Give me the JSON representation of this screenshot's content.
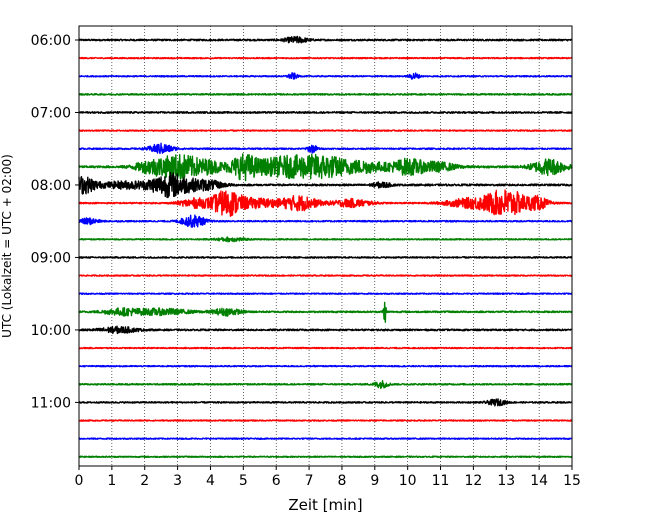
{
  "chart_data": {
    "type": "line",
    "title": "",
    "xlabel": "Zeit  [min]",
    "ylabel": "UTC (Lokalzeit = UTC + 02:00)",
    "xlim": [
      0,
      15
    ],
    "x_ticks": [
      0,
      1,
      2,
      3,
      4,
      5,
      6,
      7,
      8,
      9,
      10,
      11,
      12,
      13,
      14,
      15
    ],
    "x_tick_labels": [
      "0",
      "1",
      "2",
      "3",
      "4",
      "5",
      "6",
      "7",
      "8",
      "9",
      "10",
      "11",
      "12",
      "13",
      "14",
      "15"
    ],
    "y_tick_labels": [
      "06:00",
      "07:00",
      "08:00",
      "09:00",
      "10:00",
      "11:00"
    ],
    "grid": "vertical dotted",
    "legend": "none",
    "line_colors": [
      "#000000",
      "#ff0000",
      "#0000ff",
      "#008000"
    ],
    "series": [
      {
        "values": [],
        "color": "#000000",
        "start_time": "06:00",
        "amplitude": 0.08,
        "bursts": [
          {
            "t": 6.6,
            "w": 0.25,
            "a": 0.3
          }
        ]
      },
      {
        "values": [],
        "color": "#ff0000",
        "start_time": "06:15",
        "amplitude": 0.06,
        "bursts": []
      },
      {
        "values": [],
        "color": "#0000ff",
        "start_time": "06:30",
        "amplitude": 0.06,
        "bursts": [
          {
            "t": 6.5,
            "w": 0.1,
            "a": 0.3
          },
          {
            "t": 10.2,
            "w": 0.1,
            "a": 0.35
          }
        ]
      },
      {
        "values": [],
        "color": "#008000",
        "start_time": "06:45",
        "amplitude": 0.07,
        "bursts": []
      },
      {
        "values": [],
        "color": "#000000",
        "start_time": "07:00",
        "amplitude": 0.08,
        "bursts": []
      },
      {
        "values": [],
        "color": "#ff0000",
        "start_time": "07:15",
        "amplitude": 0.06,
        "bursts": []
      },
      {
        "values": [],
        "color": "#0000ff",
        "start_time": "07:30",
        "amplitude": 0.07,
        "bursts": [
          {
            "t": 2.5,
            "w": 0.25,
            "a": 0.5
          },
          {
            "t": 7.1,
            "w": 0.1,
            "a": 0.4
          }
        ]
      },
      {
        "values": [],
        "color": "#008000",
        "start_time": "07:45",
        "amplitude": 0.1,
        "bursts": [
          {
            "t": 2.2,
            "w": 0.35,
            "a": 0.6
          },
          {
            "t": 3.1,
            "w": 0.45,
            "a": 1.2
          },
          {
            "t": 4.0,
            "w": 0.3,
            "a": 0.5
          },
          {
            "t": 5.0,
            "w": 0.3,
            "a": 1.1
          },
          {
            "t": 6.3,
            "w": 0.7,
            "a": 1.0
          },
          {
            "t": 7.5,
            "w": 0.5,
            "a": 0.9
          },
          {
            "t": 8.7,
            "w": 0.5,
            "a": 0.55
          },
          {
            "t": 10.0,
            "w": 0.35,
            "a": 0.75
          },
          {
            "t": 10.9,
            "w": 0.4,
            "a": 0.45
          },
          {
            "t": 14.3,
            "w": 0.35,
            "a": 0.8
          }
        ]
      },
      {
        "values": [],
        "color": "#000000",
        "start_time": "08:00",
        "amplitude": 0.09,
        "bursts": [
          {
            "t": 0.1,
            "w": 0.3,
            "a": 0.85
          },
          {
            "t": 1.4,
            "w": 0.5,
            "a": 0.35
          },
          {
            "t": 2.8,
            "w": 0.45,
            "a": 1.2
          },
          {
            "t": 3.9,
            "w": 0.35,
            "a": 0.45
          },
          {
            "t": 9.2,
            "w": 0.2,
            "a": 0.25
          }
        ]
      },
      {
        "values": [],
        "color": "#ff0000",
        "start_time": "08:15",
        "amplitude": 0.07,
        "bursts": [
          {
            "t": 3.5,
            "w": 0.3,
            "a": 0.45
          },
          {
            "t": 4.5,
            "w": 0.35,
            "a": 1.3
          },
          {
            "t": 5.5,
            "w": 0.4,
            "a": 0.45
          },
          {
            "t": 6.7,
            "w": 0.4,
            "a": 0.75
          },
          {
            "t": 8.3,
            "w": 0.4,
            "a": 0.4
          },
          {
            "t": 11.8,
            "w": 0.5,
            "a": 0.4
          },
          {
            "t": 13.0,
            "w": 0.5,
            "a": 1.35
          },
          {
            "t": 14.0,
            "w": 0.2,
            "a": 0.5
          }
        ]
      },
      {
        "values": [],
        "color": "#0000ff",
        "start_time": "08:30",
        "amplitude": 0.07,
        "bursts": [
          {
            "t": 0.3,
            "w": 0.2,
            "a": 0.3
          },
          {
            "t": 3.6,
            "w": 0.2,
            "a": 0.45
          },
          {
            "t": 3.3,
            "w": 0.2,
            "a": 0.3
          }
        ]
      },
      {
        "values": [],
        "color": "#008000",
        "start_time": "08:45",
        "amplitude": 0.06,
        "bursts": [
          {
            "t": 4.6,
            "w": 0.3,
            "a": 0.2
          }
        ]
      },
      {
        "values": [],
        "color": "#000000",
        "start_time": "09:00",
        "amplitude": 0.07,
        "bursts": []
      },
      {
        "values": [],
        "color": "#ff0000",
        "start_time": "09:15",
        "amplitude": 0.06,
        "bursts": []
      },
      {
        "values": [],
        "color": "#0000ff",
        "start_time": "09:30",
        "amplitude": 0.06,
        "bursts": []
      },
      {
        "values": [],
        "color": "#008000",
        "start_time": "09:45",
        "amplitude": 0.08,
        "bursts": [
          {
            "t": 1.3,
            "w": 0.4,
            "a": 0.3
          },
          {
            "t": 2.5,
            "w": 0.6,
            "a": 0.3
          },
          {
            "t": 4.5,
            "w": 0.3,
            "a": 0.35
          },
          {
            "t": 9.3,
            "w": 0.03,
            "a": 1.3
          }
        ]
      },
      {
        "values": [],
        "color": "#000000",
        "start_time": "10:00",
        "amplitude": 0.08,
        "bursts": [
          {
            "t": 1.2,
            "w": 0.4,
            "a": 0.3
          }
        ]
      },
      {
        "values": [],
        "color": "#ff0000",
        "start_time": "10:15",
        "amplitude": 0.06,
        "bursts": []
      },
      {
        "values": [],
        "color": "#0000ff",
        "start_time": "10:30",
        "amplitude": 0.06,
        "bursts": []
      },
      {
        "values": [],
        "color": "#008000",
        "start_time": "10:45",
        "amplitude": 0.07,
        "bursts": [
          {
            "t": 9.2,
            "w": 0.15,
            "a": 0.35
          }
        ]
      },
      {
        "values": [],
        "color": "#000000",
        "start_time": "11:00",
        "amplitude": 0.07,
        "bursts": [
          {
            "t": 12.7,
            "w": 0.2,
            "a": 0.3
          }
        ]
      },
      {
        "values": [],
        "color": "#ff0000",
        "start_time": "11:15",
        "amplitude": 0.06,
        "bursts": []
      },
      {
        "values": [],
        "color": "#0000ff",
        "start_time": "11:30",
        "amplitude": 0.06,
        "bursts": []
      },
      {
        "values": [],
        "color": "#008000",
        "start_time": "11:45",
        "amplitude": 0.06,
        "bursts": []
      }
    ]
  }
}
